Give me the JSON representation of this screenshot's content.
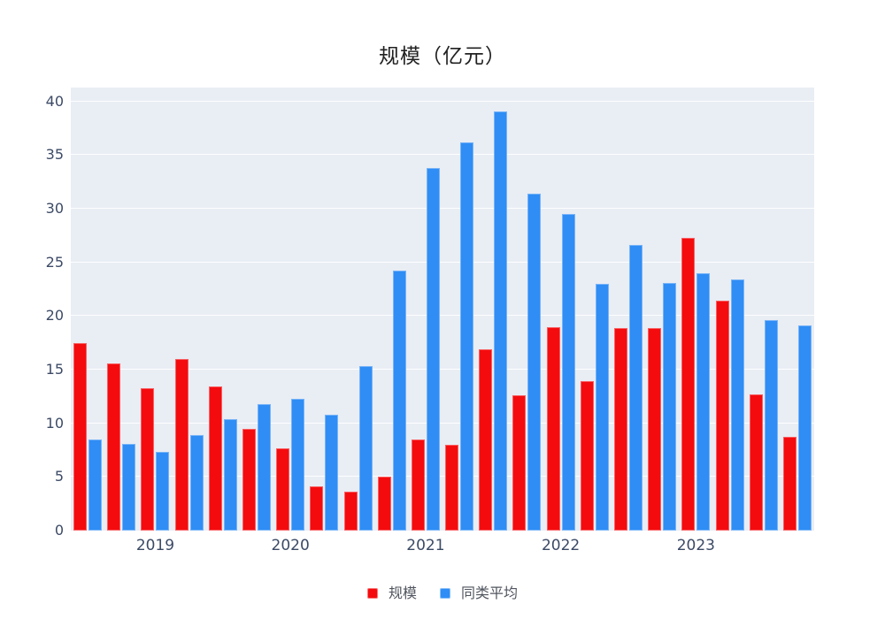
{
  "colors": {
    "scale_series": "#f40b0e",
    "average_series": "#2f8df5",
    "plot_background": "#e9edf4",
    "gridline": "#ffffff",
    "axis_label": "#3c4a66",
    "title_text": "#212121",
    "legend_text": "#50555e"
  },
  "chart_data": {
    "type": "bar",
    "title": "规模（亿元）",
    "xlabel": "",
    "ylabel": "",
    "ylim": [
      0,
      40
    ],
    "y_ticks": [
      0,
      5,
      10,
      15,
      20,
      25,
      30,
      35,
      40
    ],
    "grid": true,
    "legend_position": "bottom",
    "x_ticks": [
      {
        "label": "2019",
        "group_index": 2
      },
      {
        "label": "2020",
        "group_index": 6
      },
      {
        "label": "2021",
        "group_index": 10
      },
      {
        "label": "2022",
        "group_index": 14
      },
      {
        "label": "2023",
        "group_index": 18
      }
    ],
    "series": [
      {
        "name": "规模",
        "color": "#f40b0e",
        "values": [
          17.5,
          15.6,
          13.3,
          16.0,
          13.4,
          9.5,
          7.7,
          4.1,
          3.6,
          5.0,
          8.5,
          8.0,
          16.9,
          12.6,
          19.0,
          13.9,
          18.9,
          18.9,
          27.3,
          21.4,
          12.7,
          8.7
        ]
      },
      {
        "name": "同类平均",
        "color": "#2f8df5",
        "values": [
          8.5,
          8.1,
          7.3,
          8.9,
          10.4,
          11.8,
          12.3,
          10.8,
          15.3,
          24.2,
          33.8,
          36.2,
          39.1,
          31.4,
          29.5,
          23.0,
          26.6,
          23.1,
          24.0,
          23.4,
          19.6,
          19.1
        ]
      }
    ]
  }
}
